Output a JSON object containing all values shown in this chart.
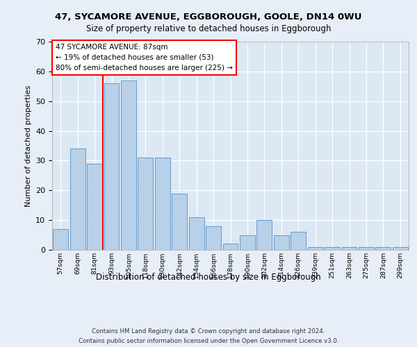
{
  "title1": "47, SYCAMORE AVENUE, EGGBOROUGH, GOOLE, DN14 0WU",
  "title2": "Size of property relative to detached houses in Eggborough",
  "xlabel": "Distribution of detached houses by size in Eggborough",
  "ylabel": "Number of detached properties",
  "categories": [
    "57sqm",
    "69sqm",
    "81sqm",
    "93sqm",
    "105sqm",
    "118sqm",
    "130sqm",
    "142sqm",
    "154sqm",
    "166sqm",
    "178sqm",
    "190sqm",
    "202sqm",
    "214sqm",
    "226sqm",
    "239sqm",
    "251sqm",
    "263sqm",
    "275sqm",
    "287sqm",
    "299sqm"
  ],
  "values": [
    7,
    34,
    29,
    56,
    57,
    31,
    31,
    19,
    11,
    8,
    2,
    5,
    10,
    5,
    6,
    1,
    1,
    1,
    1,
    1,
    1
  ],
  "bar_color": "#b8d0e8",
  "bar_edge_color": "#6699cc",
  "property_line_label": "47 SYCAMORE AVENUE: 87sqm",
  "annotation_line1": "← 19% of detached houses are smaller (53)",
  "annotation_line2": "80% of semi-detached houses are larger (225) →",
  "ylim": [
    0,
    70
  ],
  "yticks": [
    0,
    10,
    20,
    30,
    40,
    50,
    60,
    70
  ],
  "footer1": "Contains HM Land Registry data © Crown copyright and database right 2024.",
  "footer2": "Contains public sector information licensed under the Open Government Licence v3.0.",
  "bg_color": "#e8eef8",
  "plot_bg_color": "#dce8f4"
}
